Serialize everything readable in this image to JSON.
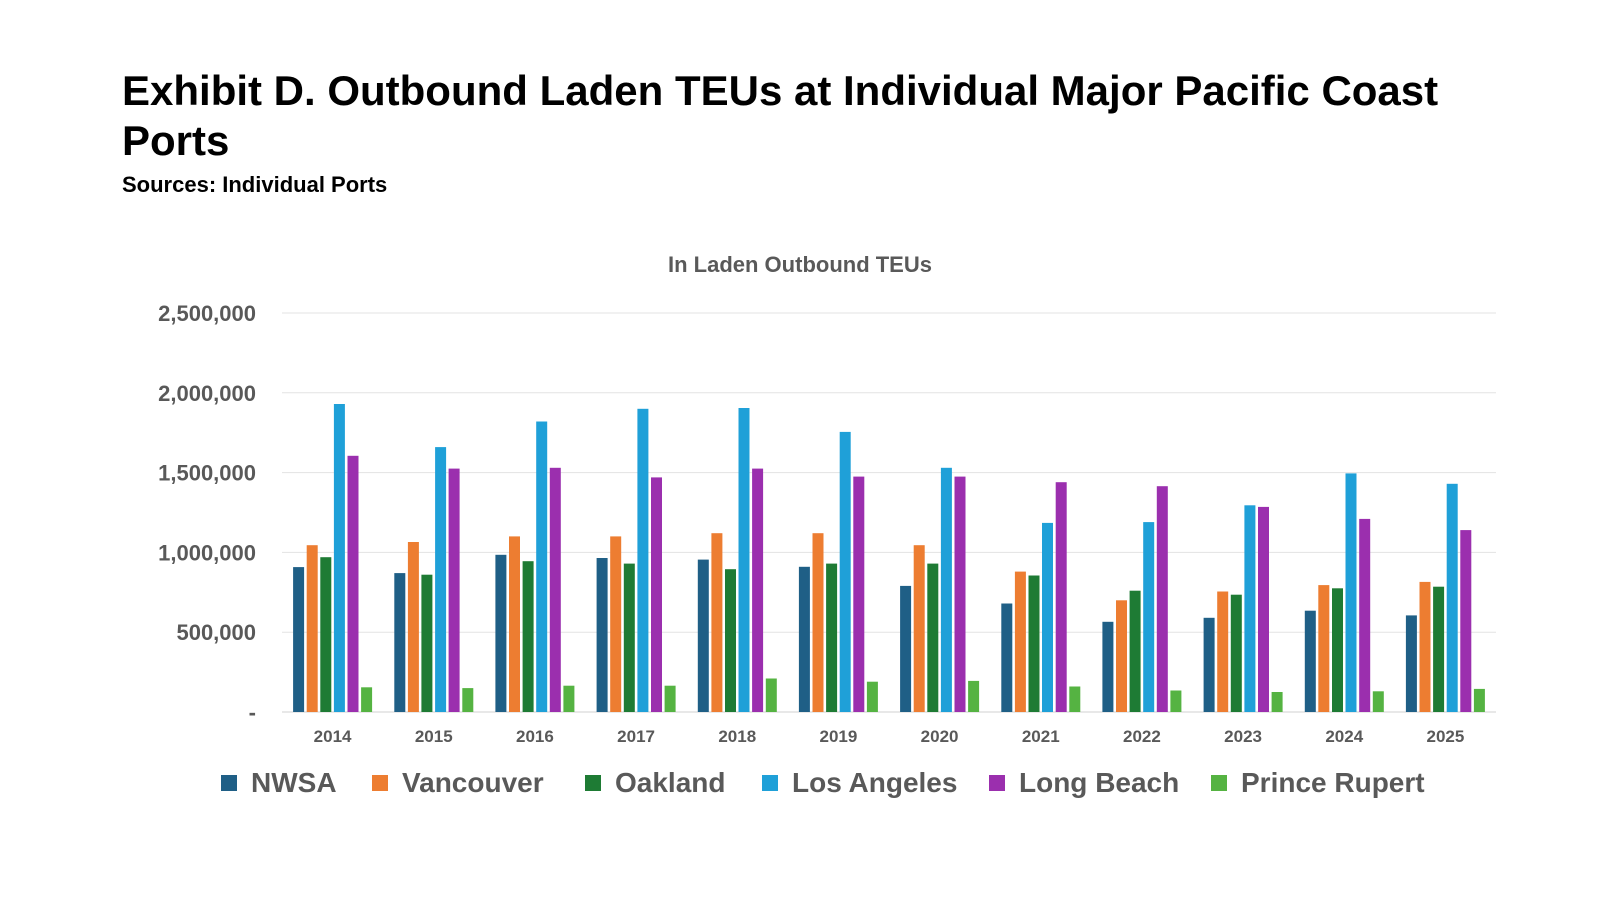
{
  "title": "Exhibit D. Outbound Laden TEUs at Individual Major Pacific Coast Ports",
  "subtitle": "Sources: Individual Ports",
  "chart_data": {
    "type": "bar",
    "title": "In Laden Outbound TEUs",
    "xlabel": "",
    "ylabel": "",
    "ylim": [
      0,
      2500000
    ],
    "yticks": [
      0,
      500000,
      1000000,
      1500000,
      2000000,
      2500000
    ],
    "ytick_labels": [
      "-",
      "500,000",
      "1,000,000",
      "1,500,000",
      "2,000,000",
      "2,500,000"
    ],
    "grid": true,
    "legend_position": "bottom",
    "categories": [
      "2014",
      "2015",
      "2016",
      "2017",
      "2018",
      "2019",
      "2020",
      "2021",
      "2022",
      "2023",
      "2024",
      "2025"
    ],
    "series": [
      {
        "name": "NWSA",
        "color": "#1f5f86",
        "values": [
          908000,
          870000,
          985000,
          965000,
          955000,
          910000,
          790000,
          680000,
          565000,
          590000,
          635000,
          605000
        ]
      },
      {
        "name": "Vancouver",
        "color": "#ed7d31",
        "values": [
          1045000,
          1065000,
          1100000,
          1100000,
          1120000,
          1120000,
          1045000,
          880000,
          700000,
          755000,
          795000,
          815000
        ]
      },
      {
        "name": "Oakland",
        "color": "#1e7b34",
        "values": [
          970000,
          860000,
          945000,
          930000,
          895000,
          930000,
          930000,
          855000,
          760000,
          735000,
          775000,
          785000
        ]
      },
      {
        "name": "Los Angeles",
        "color": "#1fa0d8",
        "values": [
          1930000,
          1660000,
          1820000,
          1900000,
          1905000,
          1755000,
          1530000,
          1185000,
          1190000,
          1295000,
          1495000,
          1430000
        ]
      },
      {
        "name": "Long Beach",
        "color": "#9b2fae",
        "values": [
          1605000,
          1525000,
          1530000,
          1470000,
          1525000,
          1475000,
          1475000,
          1440000,
          1415000,
          1285000,
          1210000,
          1140000
        ]
      },
      {
        "name": "Prince Rupert",
        "color": "#55b342",
        "values": [
          155000,
          150000,
          165000,
          165000,
          210000,
          190000,
          195000,
          160000,
          135000,
          125000,
          130000,
          145000
        ]
      }
    ]
  }
}
